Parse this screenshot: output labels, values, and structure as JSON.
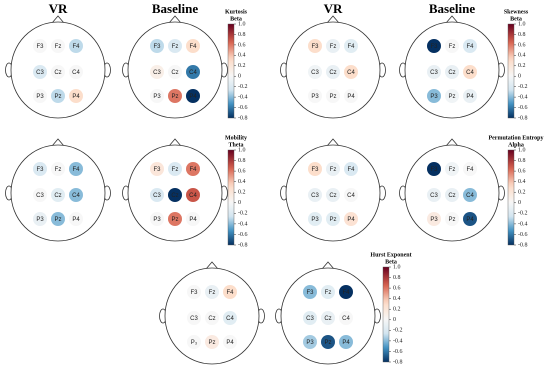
{
  "column_labels": [
    "VR",
    "Baseline",
    "VR",
    "Baseline"
  ],
  "colorbar": {
    "lim": [
      -0.8,
      1
    ],
    "ticks": [
      {
        "value": 1,
        "label": "1.0"
      },
      0.8,
      0.6,
      0.4,
      0.2,
      0,
      -0.2,
      -0.4,
      -0.6,
      -0.8
    ]
  },
  "panels": [
    {
      "title": "Kurtosis",
      "subtitle": "Beta",
      "heads": [
        {
          "electrodes": [
            {
              "label": "F3",
              "value": 0
            },
            {
              "label": "Fz",
              "value": 0
            },
            {
              "label": "F4",
              "value": -0.3
            },
            {
              "label": "C3",
              "value": -0.2
            },
            {
              "label": "Cz",
              "value": 0
            },
            {
              "label": "C4",
              "value": 0
            },
            {
              "label": "P3",
              "value": 0
            },
            {
              "label": "Pz",
              "value": -0.3
            },
            {
              "label": "P4",
              "value": 0.3
            }
          ]
        },
        {
          "electrodes": [
            {
              "label": "F3",
              "value": -0.3
            },
            {
              "label": "Fz",
              "value": -0.2
            },
            {
              "label": "F4",
              "value": 0.3
            },
            {
              "label": "C3",
              "value": 0.1
            },
            {
              "label": "Cz",
              "value": 0
            },
            {
              "label": "C4",
              "value": -0.6
            },
            {
              "label": "P3",
              "value": 0
            },
            {
              "label": "Pz",
              "value": 0.6
            },
            {
              "label": "P4",
              "value": -0.8
            }
          ]
        }
      ]
    },
    {
      "title": "Skewness",
      "subtitle": "Beta",
      "heads": [
        {
          "electrodes": [
            {
              "label": "F3",
              "value": 0.3
            },
            {
              "label": "Fz",
              "value": -0.1
            },
            {
              "label": "F4",
              "value": -0.15
            },
            {
              "label": "C3",
              "value": -0.05
            },
            {
              "label": "Cz",
              "value": -0.1
            },
            {
              "label": "C4",
              "value": 0.3
            },
            {
              "label": "P3",
              "value": 0
            },
            {
              "label": "Pz",
              "value": 0
            },
            {
              "label": "P4",
              "value": 0
            }
          ]
        },
        {
          "electrodes": [
            {
              "label": "F3",
              "value": -0.8
            },
            {
              "label": "Fz",
              "value": 0
            },
            {
              "label": "F4",
              "value": -0.2
            },
            {
              "label": "C3",
              "value": -0.1
            },
            {
              "label": "Cz",
              "value": -0.1
            },
            {
              "label": "C4",
              "value": 0.3
            },
            {
              "label": "P3",
              "value": -0.4
            },
            {
              "label": "Pz",
              "value": -0.05
            },
            {
              "label": "P4",
              "value": -0.1
            }
          ]
        }
      ]
    },
    {
      "title": "Mobility",
      "subtitle": "Theta",
      "heads": [
        {
          "electrodes": [
            {
              "label": "F3",
              "value": -0.2
            },
            {
              "label": "Fz",
              "value": 0
            },
            {
              "label": "F4",
              "value": -0.4
            },
            {
              "label": "C3",
              "value": 0
            },
            {
              "label": "Cz",
              "value": -0.15
            },
            {
              "label": "C4",
              "value": -0.4
            },
            {
              "label": "P3",
              "value": -0.1
            },
            {
              "label": "Pz",
              "value": -0.4
            },
            {
              "label": "P4",
              "value": 0
            }
          ]
        },
        {
          "electrodes": [
            {
              "label": "F3",
              "value": 0.2
            },
            {
              "label": "Fz",
              "value": -0.2
            },
            {
              "label": "F4",
              "value": 0.6
            },
            {
              "label": "C3",
              "value": -0.2
            },
            {
              "label": "Cz",
              "value": -0.8
            },
            {
              "label": "C4",
              "value": 0.7
            },
            {
              "label": "P3",
              "value": 0
            },
            {
              "label": "Pz",
              "value": 0.6
            },
            {
              "label": "P4",
              "value": 0
            }
          ]
        }
      ]
    },
    {
      "title": "Permutation Entropy",
      "subtitle": "Alpha",
      "heads": [
        {
          "electrodes": [
            {
              "label": "F3",
              "value": 0.3
            },
            {
              "label": "Fz",
              "value": -0.1
            },
            {
              "label": "F4",
              "value": -0.2
            },
            {
              "label": "C3",
              "value": -0.1
            },
            {
              "label": "Cz",
              "value": -0.1
            },
            {
              "label": "C4",
              "value": 0
            },
            {
              "label": "P3",
              "value": -0.15
            },
            {
              "label": "Pz",
              "value": -0.15
            },
            {
              "label": "P4",
              "value": 0.25
            }
          ]
        },
        {
          "electrodes": [
            {
              "label": "F3",
              "value": -0.8
            },
            {
              "label": "Fz",
              "value": -0.05
            },
            {
              "label": "F4",
              "value": 0
            },
            {
              "label": "C3",
              "value": -0.1
            },
            {
              "label": "Cz",
              "value": -0.1
            },
            {
              "label": "C4",
              "value": -0.4
            },
            {
              "label": "P3",
              "value": 0.15
            },
            {
              "label": "Pz",
              "value": 0
            },
            {
              "label": "P4",
              "value": -0.7
            }
          ]
        }
      ]
    },
    {
      "title": "Hurst Exponent",
      "subtitle": "Beta",
      "heads": [
        {
          "electrodes": [
            {
              "label": "F3",
              "value": 0
            },
            {
              "label": "Fz",
              "value": -0.1
            },
            {
              "label": "F4",
              "value": 0.3
            },
            {
              "label": "C3",
              "value": 0
            },
            {
              "label": "Cz",
              "value": 0
            },
            {
              "label": "C4",
              "value": -0.15
            },
            {
              "label": "P₃",
              "value": 0
            },
            {
              "label": "Pz",
              "value": 0.15
            },
            {
              "label": "P4",
              "value": 0
            }
          ]
        },
        {
          "electrodes": [
            {
              "label": "F3",
              "value": -0.4
            },
            {
              "label": "Fz",
              "value": -0.15
            },
            {
              "label": "F4",
              "value": -0.8
            },
            {
              "label": "C3",
              "value": -0.15
            },
            {
              "label": "Cz",
              "value": -0.1
            },
            {
              "label": "C4",
              "value": 0
            },
            {
              "label": "P3",
              "value": -0.35
            },
            {
              "label": "Pz",
              "value": -0.7
            },
            {
              "label": "P4",
              "value": -0.4
            }
          ]
        }
      ]
    }
  ]
}
